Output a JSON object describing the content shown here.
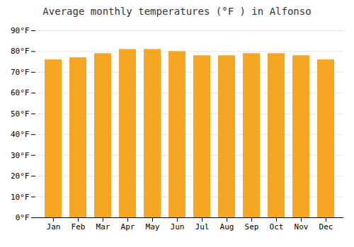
{
  "chart_data": {
    "type": "bar",
    "title": "Average monthly temperatures (°F ) in Alfonso",
    "categories": [
      "Jan",
      "Feb",
      "Mar",
      "Apr",
      "May",
      "Jun",
      "Jul",
      "Aug",
      "Sep",
      "Oct",
      "Nov",
      "Dec"
    ],
    "values": [
      76,
      77,
      79,
      81,
      81,
      80,
      78,
      78,
      79,
      79,
      78,
      76
    ],
    "color": "#F5A623",
    "ylim": [
      0,
      90
    ],
    "yticks": [
      {
        "value": 0,
        "label": "0°F"
      },
      {
        "value": 10,
        "label": "10°F"
      },
      {
        "value": 20,
        "label": "20°F"
      },
      {
        "value": 30,
        "label": "30°F"
      },
      {
        "value": 40,
        "label": "40°F"
      },
      {
        "value": 50,
        "label": "50°F"
      },
      {
        "value": 60,
        "label": "60°F"
      },
      {
        "value": 70,
        "label": "70°F"
      },
      {
        "value": 80,
        "label": "80°F"
      },
      {
        "value": 90,
        "label": "90°F"
      }
    ],
    "grid": true
  }
}
